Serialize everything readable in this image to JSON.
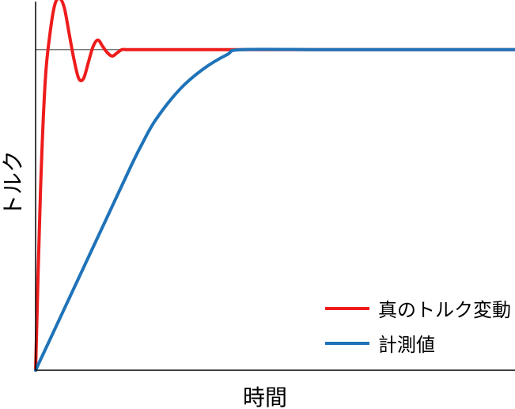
{
  "chart_data": {
    "type": "line",
    "xlabel": "時間",
    "ylabel": "トルク",
    "xlim": [
      0,
      10
    ],
    "ylim": [
      0,
      1.15
    ],
    "xticks": [],
    "yticks": [],
    "grid": false,
    "legend_position": "bottom-right",
    "reference_line": {
      "y": 1.0,
      "color": "#666666"
    },
    "series": [
      {
        "name": "真のトルク変動",
        "color": "#ee1c1c",
        "x": [
          0,
          0.1,
          0.2,
          0.3,
          0.4,
          0.5,
          0.6,
          0.7,
          0.8,
          0.9,
          1.0,
          1.1,
          1.2,
          1.3,
          1.4,
          1.5,
          1.6,
          1.7,
          1.8,
          1.9,
          2.0,
          2.2,
          2.5,
          3.0,
          4.0,
          6.0,
          8.0,
          10.0
        ],
        "values": [
          0,
          0.55,
          0.9,
          1.05,
          1.14,
          1.16,
          1.13,
          1.05,
          0.97,
          0.91,
          0.91,
          0.96,
          1.01,
          1.03,
          1.01,
          0.99,
          0.98,
          0.99,
          1.0,
          1.0,
          1.0,
          1.0,
          1.0,
          1.0,
          1.0,
          1.0,
          1.0,
          1.0
        ]
      },
      {
        "name": "計測値",
        "color": "#1f73b8",
        "x": [
          0,
          0.5,
          1.0,
          1.5,
          2.0,
          2.2,
          2.5,
          3.0,
          3.5,
          4.0,
          4.3,
          6.0,
          8.0,
          10.0
        ],
        "values": [
          0,
          0.16,
          0.32,
          0.48,
          0.64,
          0.7,
          0.78,
          0.875,
          0.94,
          0.985,
          1.0,
          1.0,
          1.0,
          1.0
        ]
      }
    ]
  }
}
